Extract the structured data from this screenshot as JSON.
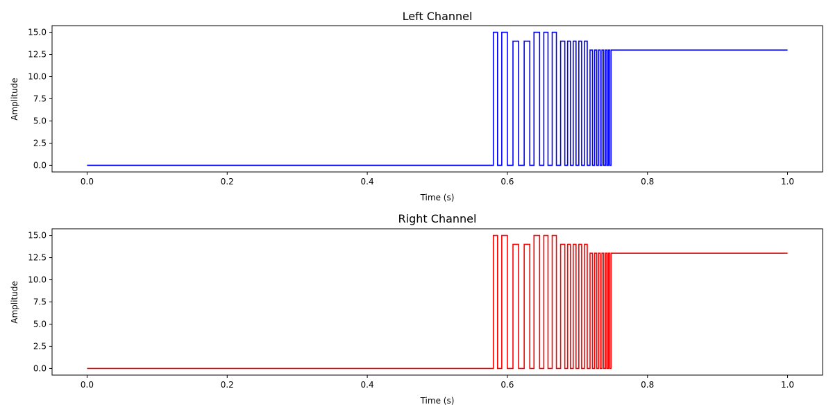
{
  "chart_data": [
    {
      "type": "line",
      "title": "Left Channel",
      "xlabel": "Time (s)",
      "ylabel": "Amplitude",
      "xlim": [
        -0.05,
        1.05
      ],
      "ylim": [
        -0.75,
        15.75
      ],
      "xticks": [
        0.0,
        0.2,
        0.4,
        0.6,
        0.8,
        1.0
      ],
      "xtick_labels": [
        "0.0",
        "0.2",
        "0.4",
        "0.6",
        "0.8",
        "1.0"
      ],
      "yticks": [
        0.0,
        2.5,
        5.0,
        7.5,
        10.0,
        12.5,
        15.0
      ],
      "ytick_labels": [
        "0.0",
        "2.5",
        "5.0",
        "7.5",
        "10.0",
        "12.5",
        "15.0"
      ],
      "grid": false,
      "color": "#0000ff",
      "series": [
        {
          "x": [
            0.0,
            0.58,
            0.58,
            0.586,
            0.586,
            0.592,
            0.592,
            0.6,
            0.6,
            0.608,
            0.608,
            0.616,
            0.616,
            0.624,
            0.624,
            0.632,
            0.632,
            0.638,
            0.638,
            0.646,
            0.646,
            0.652,
            0.652,
            0.658,
            0.658,
            0.664,
            0.664,
            0.67,
            0.67,
            0.676,
            0.676,
            0.682,
            0.682,
            0.686,
            0.686,
            0.69,
            0.69,
            0.694,
            0.694,
            0.698,
            0.698,
            0.702,
            0.702,
            0.706,
            0.706,
            0.71,
            0.71,
            0.714,
            0.714,
            0.718,
            0.718,
            0.7215,
            0.7215,
            0.7245,
            0.7245,
            0.7275,
            0.7275,
            0.73,
            0.73,
            0.7325,
            0.7325,
            0.735,
            0.735,
            0.7375,
            0.7375,
            0.74,
            0.74,
            0.742,
            0.742,
            0.744,
            0.744,
            0.746,
            0.746,
            0.748,
            0.748,
            1.0
          ],
          "y": [
            0,
            0,
            15,
            15,
            0,
            0,
            15,
            15,
            0,
            0,
            14,
            14,
            0,
            0,
            14,
            14,
            0,
            0,
            15,
            15,
            0,
            0,
            15,
            15,
            0,
            0,
            15,
            15,
            0,
            0,
            14,
            14,
            0,
            0,
            14,
            14,
            0,
            0,
            14,
            14,
            0,
            0,
            14,
            14,
            0,
            0,
            14,
            14,
            0,
            0,
            13,
            13,
            0,
            0,
            13,
            13,
            0,
            0,
            13,
            13,
            0,
            0,
            13,
            13,
            0,
            0,
            13,
            13,
            0,
            0,
            13,
            13,
            0,
            0,
            13,
            13
          ]
        }
      ]
    },
    {
      "type": "line",
      "title": "Right Channel",
      "xlabel": "Time (s)",
      "ylabel": "Amplitude",
      "xlim": [
        -0.05,
        1.05
      ],
      "ylim": [
        -0.75,
        15.75
      ],
      "xticks": [
        0.0,
        0.2,
        0.4,
        0.6,
        0.8,
        1.0
      ],
      "xtick_labels": [
        "0.0",
        "0.2",
        "0.4",
        "0.6",
        "0.8",
        "1.0"
      ],
      "yticks": [
        0.0,
        2.5,
        5.0,
        7.5,
        10.0,
        12.5,
        15.0
      ],
      "ytick_labels": [
        "0.0",
        "2.5",
        "5.0",
        "7.5",
        "10.0",
        "12.5",
        "15.0"
      ],
      "grid": false,
      "color": "#ff0000",
      "series": [
        {
          "x": [
            0.0,
            0.58,
            0.58,
            0.586,
            0.586,
            0.592,
            0.592,
            0.6,
            0.6,
            0.608,
            0.608,
            0.616,
            0.616,
            0.624,
            0.624,
            0.632,
            0.632,
            0.638,
            0.638,
            0.646,
            0.646,
            0.652,
            0.652,
            0.658,
            0.658,
            0.664,
            0.664,
            0.67,
            0.67,
            0.676,
            0.676,
            0.682,
            0.682,
            0.686,
            0.686,
            0.69,
            0.69,
            0.694,
            0.694,
            0.698,
            0.698,
            0.702,
            0.702,
            0.706,
            0.706,
            0.71,
            0.71,
            0.714,
            0.714,
            0.718,
            0.718,
            0.7215,
            0.7215,
            0.7245,
            0.7245,
            0.7275,
            0.7275,
            0.73,
            0.73,
            0.7325,
            0.7325,
            0.735,
            0.735,
            0.7375,
            0.7375,
            0.74,
            0.74,
            0.742,
            0.742,
            0.744,
            0.744,
            0.746,
            0.746,
            0.748,
            0.748,
            1.0
          ],
          "y": [
            0,
            0,
            15,
            15,
            0,
            0,
            15,
            15,
            0,
            0,
            14,
            14,
            0,
            0,
            14,
            14,
            0,
            0,
            15,
            15,
            0,
            0,
            15,
            15,
            0,
            0,
            15,
            15,
            0,
            0,
            14,
            14,
            0,
            0,
            14,
            14,
            0,
            0,
            14,
            14,
            0,
            0,
            14,
            14,
            0,
            0,
            14,
            14,
            0,
            0,
            13,
            13,
            0,
            0,
            13,
            13,
            0,
            0,
            13,
            13,
            0,
            0,
            13,
            13,
            0,
            0,
            13,
            13,
            0,
            0,
            13,
            13,
            0,
            0,
            13,
            13
          ]
        }
      ]
    }
  ]
}
